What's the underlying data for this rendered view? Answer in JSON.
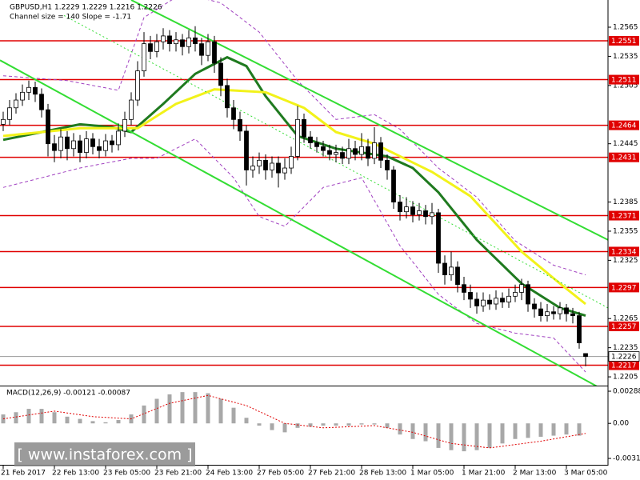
{
  "chart_data": [
    {
      "type": "candlestick",
      "title": "GBPUSD,H1  1.2229 1.2229 1.2216 1.2226",
      "subtitle": "Channel size = 140 Slope = -1.71",
      "categories": [
        "21 Feb 2017",
        null,
        null,
        null,
        null,
        null,
        null,
        null,
        "22 Feb 13:00",
        null,
        null,
        null,
        null,
        null,
        null,
        null,
        "23 Feb 05:00",
        null,
        null,
        null,
        null,
        null,
        null,
        null,
        "23 Feb 21:00",
        null,
        null,
        null,
        null,
        null,
        null,
        null,
        "24 Feb 13:00",
        null,
        null,
        null,
        null,
        null,
        null,
        null,
        "27 Feb 05:00",
        null,
        null,
        null,
        null,
        null,
        null,
        null,
        "27 Feb 21:00",
        null,
        null,
        null,
        null,
        null,
        null,
        null,
        "28 Feb 13:00",
        null,
        null,
        null,
        null,
        null,
        null,
        null,
        "1 Mar 05:00",
        null,
        null,
        null,
        null,
        null,
        null,
        null,
        "1 Mar 21:00",
        null,
        null,
        null,
        null,
        null,
        null,
        null,
        "2 Mar 13:00",
        null,
        null,
        null,
        null,
        null,
        null,
        null,
        "3 Mar 05:00",
        null,
        null,
        null
      ],
      "open": [
        1.2465,
        1.247,
        1.2482,
        1.249,
        1.2498,
        1.2503,
        1.2496,
        1.248,
        1.2445,
        1.2438,
        1.2452,
        1.244,
        1.2448,
        1.2436,
        1.245,
        1.2442,
        1.2438,
        1.2448,
        1.2444,
        1.2458,
        1.247,
        1.249,
        1.252,
        1.2548,
        1.254,
        1.255,
        1.2556,
        1.2548,
        1.2552,
        1.2545,
        1.2554,
        1.2548,
        1.2536,
        1.255,
        1.2528,
        1.2505,
        1.2482,
        1.247,
        1.2458,
        1.2418,
        1.2422,
        1.2428,
        1.2418,
        1.2425,
        1.2415,
        1.242,
        1.2432,
        1.247,
        1.2452,
        1.2446,
        1.2442,
        1.2438,
        1.2434,
        1.2436,
        1.243,
        1.244,
        1.2434,
        1.2442,
        1.243,
        1.2446,
        1.2428,
        1.2418,
        1.2385,
        1.2375,
        1.238,
        1.2372,
        1.2376,
        1.237,
        1.2374,
        1.2322,
        1.231,
        1.2318,
        1.23,
        1.2292,
        1.2285,
        1.2278,
        1.2284,
        1.228,
        1.2286,
        1.2282,
        1.2288,
        1.2292,
        1.23,
        1.228,
        1.2275,
        1.2268,
        1.2272,
        1.227,
        1.2276,
        1.227,
        1.2268,
        1.2229
      ],
      "high": [
        1.2478,
        1.249,
        1.2497,
        1.2506,
        1.251,
        1.2509,
        1.2502,
        1.2486,
        1.2454,
        1.246,
        1.2458,
        1.2456,
        1.2454,
        1.2458,
        1.2456,
        1.245,
        1.2455,
        1.2454,
        1.2466,
        1.2478,
        1.2498,
        1.253,
        1.256,
        1.2556,
        1.2558,
        1.2564,
        1.2562,
        1.256,
        1.2558,
        1.2562,
        1.2566,
        1.2554,
        1.2558,
        1.2556,
        1.2534,
        1.2512,
        1.249,
        1.2478,
        1.2464,
        1.2432,
        1.2436,
        1.2434,
        1.2432,
        1.2432,
        1.243,
        1.2442,
        1.2484,
        1.2476,
        1.2458,
        1.2452,
        1.2448,
        1.2444,
        1.2444,
        1.2442,
        1.245,
        1.2448,
        1.2456,
        1.245,
        1.2462,
        1.2452,
        1.2434,
        1.2422,
        1.2392,
        1.239,
        1.2386,
        1.2384,
        1.2382,
        1.2384,
        1.2378,
        1.233,
        1.2334,
        1.2324,
        1.2308,
        1.23,
        1.2292,
        1.2292,
        1.229,
        1.2294,
        1.2292,
        1.2296,
        1.23,
        1.2306,
        1.2304,
        1.2286,
        1.2282,
        1.228,
        1.2278,
        1.2282,
        1.228,
        1.2276,
        1.2272,
        1.2229
      ],
      "low": [
        1.2458,
        1.2464,
        1.2476,
        1.2484,
        1.249,
        1.2488,
        1.2472,
        1.2432,
        1.2426,
        1.243,
        1.2428,
        1.2432,
        1.2426,
        1.243,
        1.2434,
        1.243,
        1.2432,
        1.2436,
        1.2438,
        1.2452,
        1.2464,
        1.2484,
        1.2514,
        1.2532,
        1.2534,
        1.2542,
        1.254,
        1.254,
        1.2536,
        1.2538,
        1.254,
        1.2526,
        1.253,
        1.2518,
        1.2494,
        1.2472,
        1.246,
        1.2448,
        1.2402,
        1.241,
        1.2414,
        1.2408,
        1.241,
        1.24,
        1.2408,
        1.2414,
        1.2428,
        1.2446,
        1.244,
        1.2436,
        1.2432,
        1.2428,
        1.2426,
        1.2424,
        1.2424,
        1.2428,
        1.2428,
        1.2422,
        1.2424,
        1.242,
        1.2408,
        1.2378,
        1.2366,
        1.2368,
        1.2364,
        1.2366,
        1.2362,
        1.2362,
        1.2312,
        1.23,
        1.2304,
        1.2292,
        1.2284,
        1.2276,
        1.227,
        1.2272,
        1.2274,
        1.2274,
        1.2276,
        1.2276,
        1.2282,
        1.2284,
        1.2272,
        1.2266,
        1.2262,
        1.2262,
        1.2264,
        1.2264,
        1.2262,
        1.226,
        1.2234,
        1.2216
      ],
      "close": [
        1.247,
        1.2482,
        1.249,
        1.2498,
        1.2503,
        1.2496,
        1.248,
        1.2445,
        1.2438,
        1.2452,
        1.244,
        1.2448,
        1.2436,
        1.245,
        1.2442,
        1.2438,
        1.2448,
        1.2444,
        1.2458,
        1.247,
        1.249,
        1.252,
        1.2548,
        1.254,
        1.255,
        1.2556,
        1.2548,
        1.2552,
        1.2545,
        1.2554,
        1.2548,
        1.2536,
        1.255,
        1.2528,
        1.2505,
        1.2482,
        1.247,
        1.2458,
        1.2418,
        1.2422,
        1.2428,
        1.2418,
        1.2425,
        1.2415,
        1.242,
        1.2432,
        1.247,
        1.2452,
        1.2446,
        1.2442,
        1.2438,
        1.2434,
        1.2436,
        1.243,
        1.244,
        1.2434,
        1.2442,
        1.243,
        1.2446,
        1.2428,
        1.2418,
        1.2385,
        1.2375,
        1.238,
        1.2372,
        1.2376,
        1.237,
        1.2374,
        1.2322,
        1.231,
        1.2318,
        1.23,
        1.2292,
        1.2285,
        1.2278,
        1.2284,
        1.228,
        1.2286,
        1.2282,
        1.2288,
        1.2292,
        1.23,
        1.228,
        1.2275,
        1.2268,
        1.2272,
        1.227,
        1.2276,
        1.227,
        1.2268,
        1.224,
        1.2226
      ],
      "up_color": "#ffffff",
      "down_color": "#000000",
      "lines": [
        {
          "color": "#1f7a1f",
          "style": "solid",
          "width": 3,
          "x": [
            0,
            6,
            12,
            17,
            20,
            25,
            30,
            35,
            38,
            41,
            46,
            52,
            60,
            64,
            68,
            74,
            81,
            87,
            91
          ],
          "values": [
            1.2449,
            1.2457,
            1.2465,
            1.2462,
            1.2457,
            1.2486,
            1.2517,
            1.2534,
            1.2525,
            1.2494,
            1.2453,
            1.244,
            1.2432,
            1.242,
            1.2395,
            1.2346,
            1.2301,
            1.2276,
            1.2268
          ]
        },
        {
          "color": "#f2f21a",
          "style": "solid",
          "width": 3,
          "x": [
            0,
            12,
            21,
            27,
            33,
            41,
            47,
            52,
            58,
            67,
            73,
            81,
            87,
            91
          ],
          "values": [
            1.2453,
            1.2461,
            1.2461,
            1.2486,
            1.2501,
            1.2498,
            1.2482,
            1.2457,
            1.2445,
            1.2416,
            1.2391,
            1.2334,
            1.2301,
            1.228
          ]
        },
        {
          "color": "#a040c0",
          "style": "dashed",
          "width": 1,
          "x": [
            0,
            10,
            18,
            22,
            28,
            34,
            40,
            46,
            52,
            58,
            62,
            68,
            74,
            80,
            86,
            91
          ],
          "values": [
            1.2515,
            1.251,
            1.25,
            1.2575,
            1.26,
            1.259,
            1.256,
            1.251,
            1.247,
            1.2475,
            1.246,
            1.242,
            1.239,
            1.2345,
            1.232,
            1.231
          ]
        },
        {
          "color": "#a040c0",
          "style": "dashed",
          "width": 1,
          "x": [
            0,
            6,
            12,
            20,
            24,
            30,
            36,
            40,
            44,
            50,
            56,
            62,
            68,
            74,
            80,
            86,
            91
          ],
          "values": [
            1.24,
            1.241,
            1.242,
            1.243,
            1.243,
            1.245,
            1.241,
            1.237,
            1.236,
            1.24,
            1.241,
            1.234,
            1.229,
            1.226,
            1.225,
            1.2245,
            1.221
          ]
        },
        {
          "color": "#33dd33",
          "style": "solid",
          "width": 2,
          "x": [
            20,
            94.5
          ],
          "values": [
            1.2593,
            1.2346
          ]
        },
        {
          "color": "#33dd33",
          "style": "solid",
          "width": 2,
          "x": [
            -0.5,
            94.5
          ],
          "values": [
            1.2531,
            1.2189
          ]
        },
        {
          "color": "#33dd33",
          "style": "dotted",
          "width": 1,
          "x": [
            9.5,
            94.5
          ],
          "values": [
            1.2577,
            1.2276
          ]
        }
      ],
      "levels": [
        1.2551,
        1.2511,
        1.2464,
        1.2431,
        1.2371,
        1.2334,
        1.2297,
        1.2257,
        1.2217
      ],
      "level_color": "#e00000",
      "current": 1.2226,
      "ylim": [
        1.2196,
        1.2593
      ],
      "yticks": [
        1.2565,
        1.2535,
        1.2505,
        1.2445,
        1.2385,
        1.2355,
        1.2325,
        1.2265,
        1.2235,
        1.2205
      ]
    },
    {
      "type": "bar",
      "title": "MACD(12,26,9) -0.00121 -0.00087",
      "color": "#a8a8a8",
      "x": [
        0,
        2,
        4,
        6,
        8,
        10,
        12,
        14,
        16,
        18,
        20,
        22,
        24,
        26,
        28,
        30,
        32,
        34,
        36,
        38,
        40,
        42,
        44,
        46,
        48,
        50,
        52,
        54,
        56,
        58,
        60,
        62,
        64,
        66,
        68,
        70,
        72,
        74,
        76,
        78,
        80,
        82,
        84,
        86,
        88,
        90
      ],
      "values": [
        0.0008,
        0.001,
        0.0013,
        0.0013,
        0.001,
        0.0006,
        0.0004,
        0.0002,
        0.0001,
        0.0003,
        0.0008,
        0.0016,
        0.0022,
        0.0026,
        0.0028,
        0.0028,
        0.0027,
        0.0022,
        0.0014,
        0.0005,
        -0.0002,
        -0.0006,
        -0.0008,
        -0.0004,
        -0.0003,
        -0.0002,
        -0.0002,
        -0.0002,
        -0.0001,
        -0.0001,
        -0.0004,
        -0.001,
        -0.0014,
        -0.0016,
        -0.0022,
        -0.0024,
        -0.0025,
        -0.0024,
        -0.0022,
        -0.0018,
        -0.0014,
        -0.0013,
        -0.0012,
        -0.0011,
        -0.001,
        -0.0011
      ],
      "signal": {
        "color": "#e00000",
        "x": [
          0,
          8,
          14,
          20,
          26,
          32,
          38,
          44,
          50,
          58,
          64,
          70,
          76,
          84,
          91
        ],
        "values": [
          0.0004,
          0.0011,
          0.0006,
          0.0004,
          0.0018,
          0.0025,
          0.0016,
          0.0,
          -0.0004,
          -0.0002,
          -0.0008,
          -0.0018,
          -0.0022,
          -0.0016,
          -0.0009
        ]
      },
      "ylim": [
        -0.00364,
        0.00324
      ],
      "yticks": [
        0.00288,
        {
          "value": 0,
          "label": "0.00"
        },
        -0.00314
      ]
    }
  ],
  "watermark": "[ www.instaforex.com ]"
}
